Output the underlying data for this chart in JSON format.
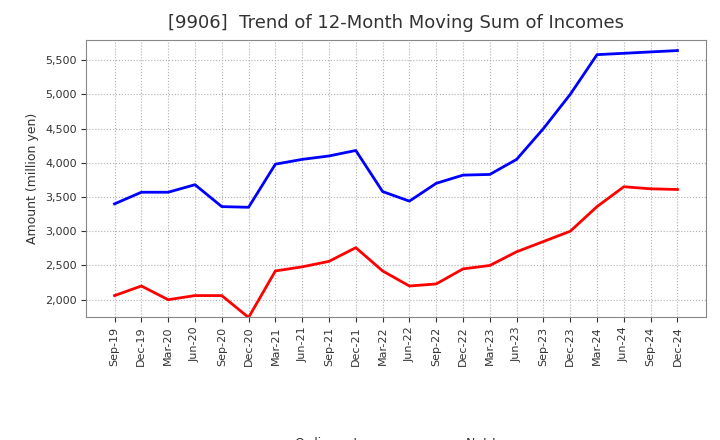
{
  "title": "[9906]  Trend of 12-Month Moving Sum of Incomes",
  "ylabel": "Amount (million yen)",
  "x_labels": [
    "Sep-19",
    "Dec-19",
    "Mar-20",
    "Jun-20",
    "Sep-20",
    "Dec-20",
    "Mar-21",
    "Jun-21",
    "Sep-21",
    "Dec-21",
    "Mar-22",
    "Jun-22",
    "Sep-22",
    "Dec-22",
    "Mar-23",
    "Jun-23",
    "Sep-23",
    "Dec-23",
    "Mar-24",
    "Jun-24",
    "Sep-24",
    "Dec-24"
  ],
  "ordinary_income": [
    3400,
    3570,
    3570,
    3680,
    3360,
    3350,
    3980,
    4050,
    4100,
    4180,
    3580,
    3440,
    3700,
    3820,
    3830,
    4050,
    4500,
    5000,
    5580,
    5600,
    5620,
    5640
  ],
  "net_income": [
    2060,
    2200,
    2000,
    2060,
    2060,
    1740,
    2420,
    2480,
    2560,
    2760,
    2420,
    2200,
    2230,
    2450,
    2500,
    2700,
    2850,
    3000,
    3360,
    3650,
    3620,
    3610
  ],
  "ordinary_color": "#0000ff",
  "net_color": "#ff0000",
  "background_color": "#ffffff",
  "grid_color": "#b0b0b0",
  "title_color": "#333333",
  "ylim": [
    1750,
    5800
  ],
  "yticks": [
    2000,
    2500,
    3000,
    3500,
    4000,
    4500,
    5000,
    5500
  ],
  "line_width": 2.0,
  "title_fontsize": 13,
  "axis_fontsize": 9,
  "tick_fontsize": 8,
  "legend_fontsize": 9
}
